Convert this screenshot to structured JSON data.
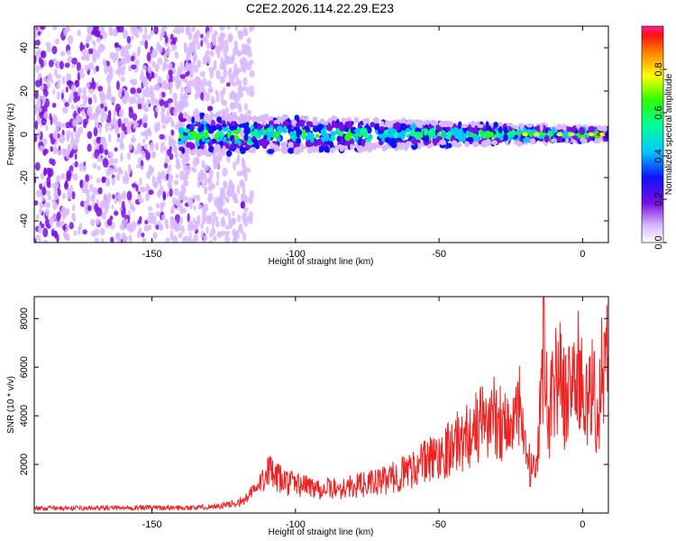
{
  "title": "C2E2.2026.114.22.29.E23",
  "chart_data": [
    {
      "type": "heatmap",
      "xlabel": "Height of straight line (km)",
      "ylabel": "Frequency (Hz)",
      "xlim": [
        -191,
        9
      ],
      "ylim": [
        -50,
        50
      ],
      "xticks": [
        -150,
        -100,
        -50,
        0
      ],
      "yticks": [
        -40,
        -20,
        0,
        20,
        40
      ],
      "colorbar": {
        "label": "Normalized spectral amplitude",
        "range": [
          0,
          1
        ],
        "ticks": [
          0.0,
          0.2,
          0.4,
          0.6,
          0.8
        ]
      },
      "features": {
        "noise_region_x": [
          -191,
          -115
        ],
        "signal_band_start_x": -140,
        "signal_center_freq_hz": 0,
        "band_halfwidth_hz": {
          "at_-140": 7,
          "at_0": 2
        },
        "peak_amplitude_x": 6,
        "grid": false
      }
    },
    {
      "type": "line",
      "xlabel": "Height of straight line (km)",
      "ylabel": "SNR (10 * v/v)",
      "xlim": [
        -191,
        9
      ],
      "ylim": [
        0,
        8900
      ],
      "xticks": [
        -150,
        -100,
        -50,
        0
      ],
      "yticks": [
        2000,
        4000,
        6000,
        8000
      ],
      "color": "#ee2222",
      "grid": false,
      "series": [
        {
          "x": [
            -191,
            -170,
            -150,
            -135,
            -125,
            -118,
            -112,
            -110,
            -108,
            -104,
            -100,
            -95,
            -90,
            -85,
            -80,
            -75,
            -70,
            -65,
            -60,
            -55,
            -50,
            -45,
            -40,
            -35,
            -30,
            -25,
            -22,
            -20,
            -18,
            -16,
            -14,
            -13.5,
            -12,
            -10,
            -8,
            -6,
            -4,
            -2,
            0,
            2,
            4,
            5,
            7,
            9
          ],
          "y": [
            200,
            200,
            220,
            220,
            300,
            500,
            1200,
            2000,
            1500,
            1300,
            1200,
            1100,
            1000,
            1000,
            1100,
            1200,
            1300,
            1500,
            1800,
            2100,
            2400,
            2800,
            3200,
            3700,
            4000,
            3500,
            4200,
            2500,
            1800,
            1500,
            5500,
            8900,
            3500,
            5500,
            5800,
            4500,
            5500,
            6000,
            5000,
            4200,
            5500,
            3200,
            6400,
            5800
          ]
        }
      ]
    }
  ]
}
